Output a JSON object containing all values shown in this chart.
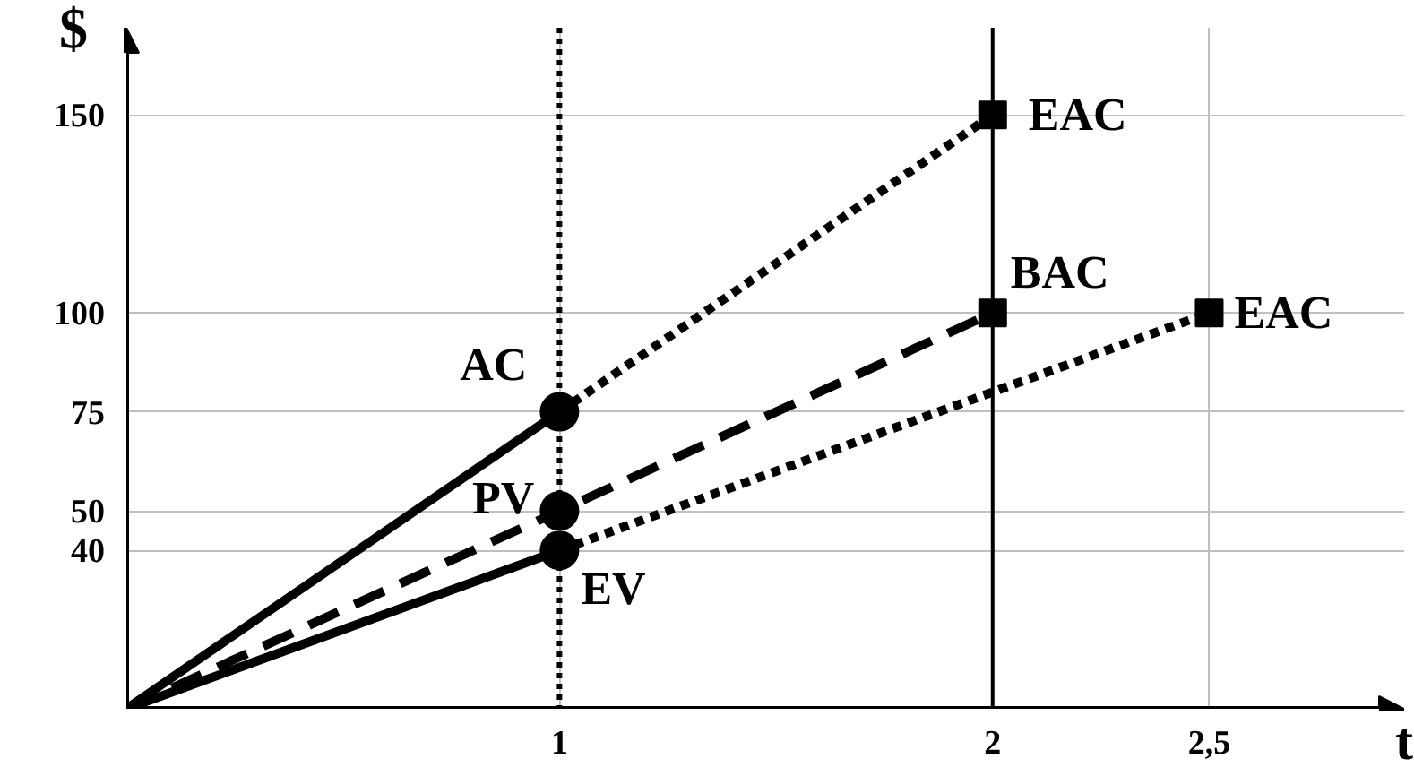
{
  "chart_data": {
    "type": "line",
    "xlabel": "t",
    "ylabel": "$",
    "xlim": [
      0,
      2.95
    ],
    "ylim": [
      0,
      172
    ],
    "xticks": [
      1,
      2,
      {
        "value": 2.5,
        "label": "2,5"
      }
    ],
    "yticks": [
      40,
      50,
      75,
      100,
      150
    ],
    "grid": true,
    "series": [
      {
        "color": "#000000",
        "x": [
          0,
          1
        ],
        "values": [
          0,
          75
        ],
        "line_style": "solid"
      },
      {
        "color": "#000000",
        "x": [
          1,
          2
        ],
        "values": [
          75,
          150
        ],
        "line_style": "dotted"
      },
      {
        "color": "#000000",
        "x": [
          0,
          1,
          2
        ],
        "values": [
          0,
          50,
          100
        ],
        "line_style": "dashed"
      },
      {
        "color": "#000000",
        "x": [
          0,
          1
        ],
        "values": [
          0,
          40
        ],
        "line_style": "solid"
      },
      {
        "color": "#000000",
        "x": [
          1,
          2.5
        ],
        "values": [
          40,
          100
        ],
        "line_style": "dotted"
      },
      {
        "type": "scatter",
        "color": "#000000",
        "x": [
          1,
          1,
          1
        ],
        "values": [
          75,
          50,
          40
        ],
        "marker": "circle"
      },
      {
        "type": "scatter",
        "color": "#000000",
        "x": [
          2,
          2,
          2.5
        ],
        "values": [
          150,
          100,
          100
        ],
        "marker": "square"
      }
    ],
    "ref_lines": [
      {
        "axis": "x",
        "value": 1,
        "color": "#000000",
        "line_style": "dotted"
      },
      {
        "axis": "x",
        "value": 2,
        "color": "#000000",
        "line_style": "solid"
      }
    ],
    "annotations": [
      {
        "text": "AC",
        "x": 1,
        "y": 75
      },
      {
        "text": "PV",
        "x": 1,
        "y": 50
      },
      {
        "text": "EV",
        "x": 1,
        "y": 40
      },
      {
        "text": "EAC",
        "x": 2,
        "y": 150
      },
      {
        "text": "BAC",
        "x": 2,
        "y": 100
      },
      {
        "text": "EAC",
        "x": 2.5,
        "y": 100
      }
    ]
  }
}
